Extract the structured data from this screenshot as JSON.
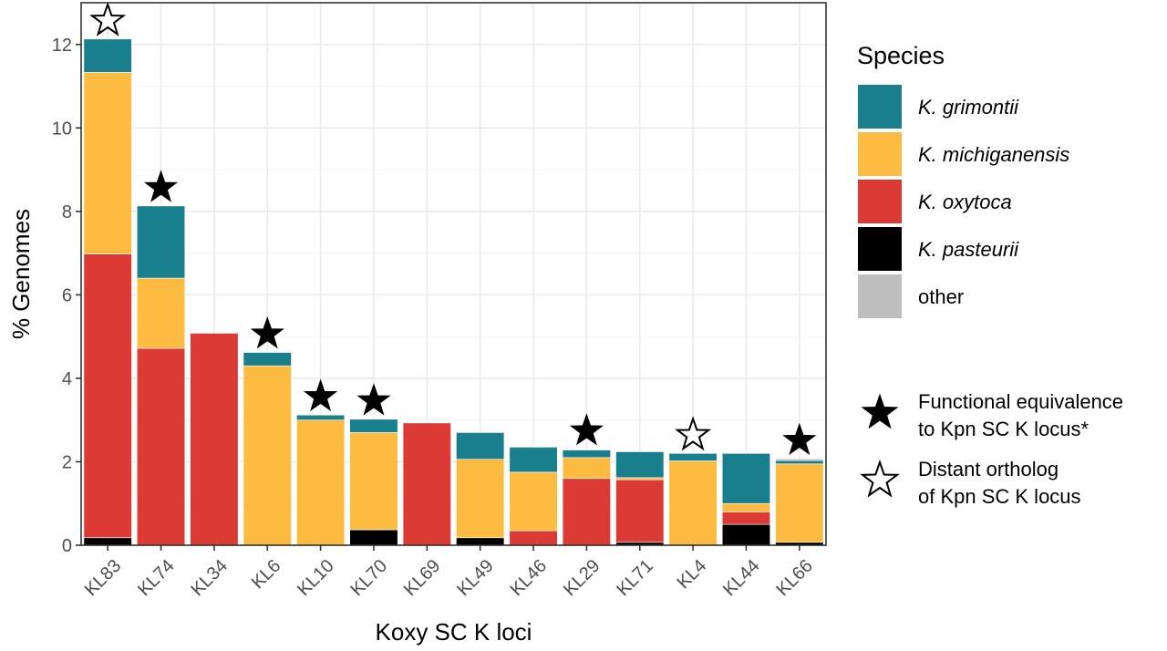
{
  "chart_data": {
    "type": "bar",
    "stacked": true,
    "xlabel": "Koxy SC K loci",
    "ylabel": "% Genomes",
    "ylim": [
      0,
      13
    ],
    "yticks": [
      0,
      2,
      4,
      6,
      8,
      10,
      12
    ],
    "grid": true,
    "categories": [
      "KL83",
      "KL74",
      "KL34",
      "KL6",
      "KL10",
      "KL70",
      "KL69",
      "KL49",
      "KL46",
      "KL29",
      "KL71",
      "KL4",
      "KL44",
      "KL66"
    ],
    "series": [
      {
        "name": "K. pasteurii",
        "color": "#000000",
        "values": [
          0.18,
          0,
          0,
          0,
          0,
          0.37,
          0,
          0.18,
          0,
          0,
          0.07,
          0,
          0.5,
          0.07
        ]
      },
      {
        "name": "K. oxytoca",
        "color": "#dc3a35",
        "values": [
          6.8,
          4.72,
          5.08,
          0,
          0,
          0,
          2.93,
          0,
          0.35,
          1.6,
          1.5,
          0,
          0.3,
          0
        ]
      },
      {
        "name": "K. michiganensis",
        "color": "#fdbb42",
        "values": [
          4.35,
          1.68,
          0,
          4.3,
          3.0,
          2.33,
          0,
          1.88,
          1.4,
          0.5,
          0.05,
          2.02,
          0.2,
          1.88
        ]
      },
      {
        "name": "K. grimontii",
        "color": "#1a7f8c",
        "values": [
          0.8,
          1.73,
          0,
          0.32,
          0.12,
          0.32,
          0,
          0.64,
          0.6,
          0.18,
          0.62,
          0.18,
          1.2,
          0.08
        ]
      },
      {
        "name": "other",
        "color": "#bebebe",
        "values": [
          0,
          0,
          0,
          0,
          0,
          0,
          0,
          0,
          0,
          0.02,
          0,
          0,
          0,
          0.04
        ]
      }
    ],
    "markers": [
      "open",
      "filled",
      "",
      "filled",
      "filled",
      "filled",
      "",
      "",
      "",
      "filled",
      "",
      "open",
      "",
      "filled"
    ]
  },
  "legend": {
    "title": "Species",
    "placement": "right",
    "items": [
      {
        "label": "K. grimontii",
        "color": "#1a7f8c",
        "italic": true
      },
      {
        "label": "K. michiganensis",
        "color": "#fdbb42",
        "italic": true
      },
      {
        "label": "K. oxytoca",
        "color": "#dc3a35",
        "italic": true
      },
      {
        "label": "K. pasteurii",
        "color": "#000000",
        "italic": true
      },
      {
        "label": "other",
        "color": "#bebebe",
        "italic": false
      }
    ],
    "star_legend": [
      {
        "type": "filled",
        "lines": [
          "Functional equivalence",
          "to Kpn SC K locus*"
        ]
      },
      {
        "type": "open",
        "lines": [
          "Distant ortholog",
          "of Kpn SC K locus"
        ]
      }
    ]
  }
}
